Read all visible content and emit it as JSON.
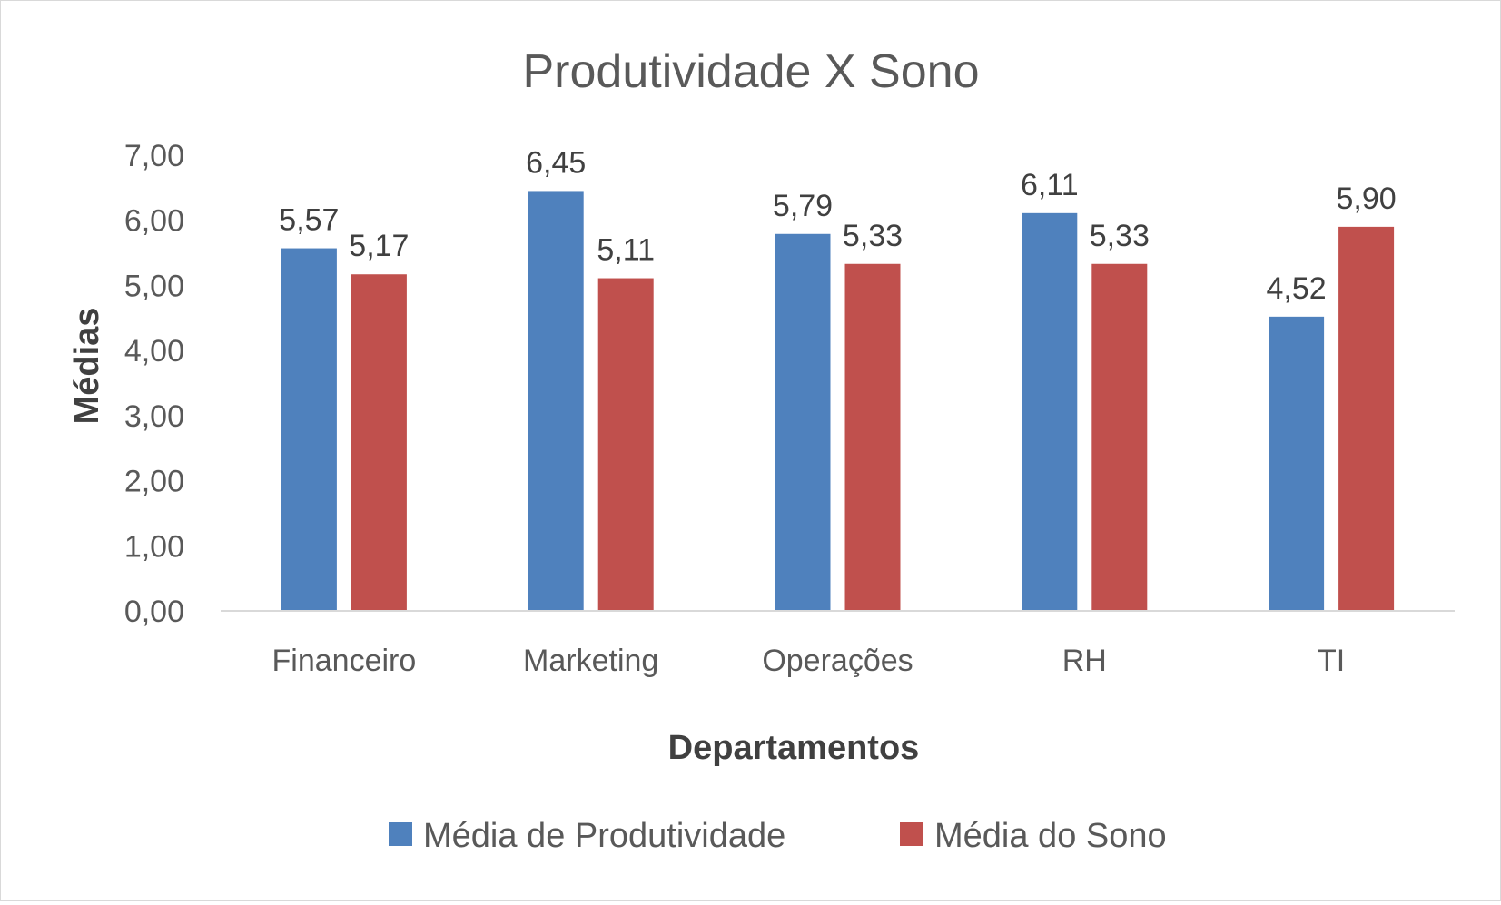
{
  "colors": {
    "series_1": "#4f81bd",
    "series_2": "#c0504d",
    "text": "#595959",
    "axis_title": "#404040",
    "data_label": "#404040",
    "axis_line": "#d9d9d9",
    "background": "#ffffff"
  },
  "chart_data": {
    "type": "bar",
    "title": "Produtividade X Sono",
    "xlabel": "Departamentos",
    "ylabel": "Médias",
    "categories": [
      "Financeiro",
      "Marketing",
      "Operações",
      "RH",
      "TI"
    ],
    "series": [
      {
        "name": "Média de Produtividade",
        "values": [
          5.57,
          6.45,
          5.79,
          6.11,
          4.52
        ]
      },
      {
        "name": "Média do Sono",
        "values": [
          5.17,
          5.11,
          5.33,
          5.33,
          5.9
        ]
      }
    ],
    "ylim": [
      0,
      7
    ],
    "yticks": [
      0,
      1,
      2,
      3,
      4,
      5,
      6,
      7
    ],
    "ytick_labels": [
      "0,00",
      "1,00",
      "2,00",
      "3,00",
      "4,00",
      "5,00",
      "6,00",
      "7,00"
    ],
    "data_labels": [
      [
        "5,57",
        "6,45",
        "5,79",
        "6,11",
        "4,52"
      ],
      [
        "5,17",
        "5,11",
        "5,33",
        "5,33",
        "5,90"
      ]
    ],
    "grid": false,
    "legend": "bottom"
  }
}
